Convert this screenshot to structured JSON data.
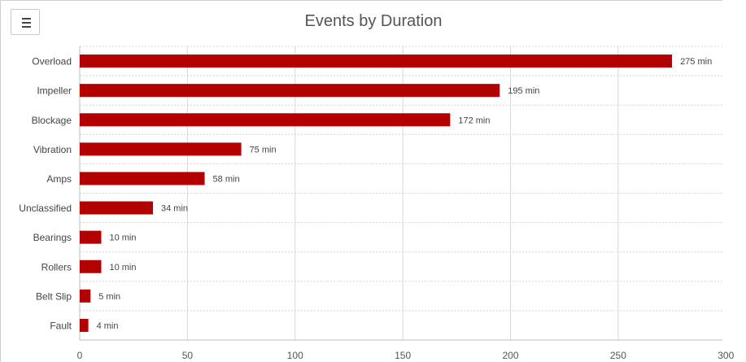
{
  "menu": {
    "icon": "hamburger-menu-icon"
  },
  "chart_data": {
    "type": "bar",
    "orientation": "horizontal",
    "title": "Events by Duration",
    "xlabel": "",
    "ylabel": "",
    "categories": [
      "Overload",
      "Impeller",
      "Blockage",
      "Vibration",
      "Amps",
      "Unclassified",
      "Bearings",
      "Rollers",
      "Belt Slip",
      "Fault"
    ],
    "values": [
      275,
      195,
      172,
      75,
      58,
      34,
      10,
      10,
      5,
      4
    ],
    "data_labels": [
      "275 min",
      "195 min",
      "172 min",
      "75 min",
      "58 min",
      "34 min",
      "10 min",
      "10 min",
      "5 min",
      "4 min"
    ],
    "xticks": [
      "0",
      "50",
      "100",
      "150",
      "200",
      "250",
      "300"
    ],
    "xlim": [
      0,
      300
    ],
    "grid": true,
    "bar_color": "#b30000",
    "gridline_color": "#d8d8d8",
    "category_gridline_color": "#d4d4d4"
  }
}
